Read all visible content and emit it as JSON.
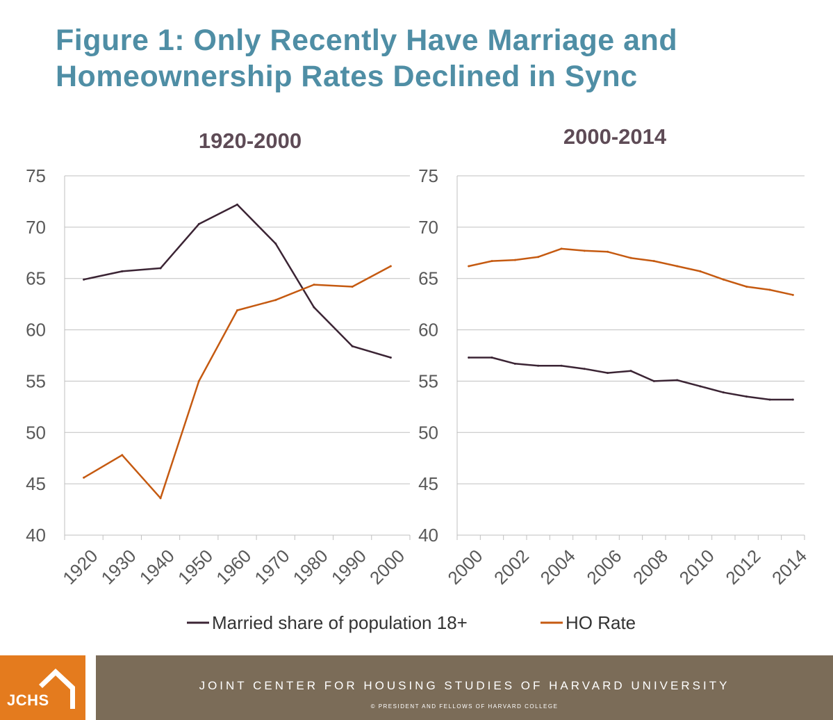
{
  "title": "Figure 1: Only Recently Have Marriage and Homeownership Rates Declined in Sync",
  "colors": {
    "title": "#4f8ea5",
    "married": "#3b2434",
    "ho": "#c55a11",
    "panel_title": "#5e4b56",
    "axis_text": "#595959",
    "grid": "#bfbfbf",
    "logo_bg": "#e47b1e",
    "footer_bg": "#7b6c58"
  },
  "legend": {
    "married_label": "Married share of population 18+",
    "ho_label": "HO Rate"
  },
  "chart_data": [
    {
      "type": "line",
      "title": "1920-2000",
      "xlabel": "",
      "ylabel": "",
      "ylim": [
        40,
        75
      ],
      "yticks": [
        40,
        45,
        50,
        55,
        60,
        65,
        70,
        75
      ],
      "categories": [
        "1920",
        "1930",
        "1940",
        "1950",
        "1960",
        "1970",
        "1980",
        "1990",
        "2000"
      ],
      "series": [
        {
          "name": "Married share of population 18+",
          "values": [
            64.9,
            65.7,
            66.0,
            70.3,
            72.2,
            68.4,
            62.2,
            58.4,
            57.3
          ]
        },
        {
          "name": "HO Rate",
          "values": [
            45.6,
            47.8,
            43.6,
            55.0,
            61.9,
            62.9,
            64.4,
            64.2,
            66.2
          ]
        }
      ]
    },
    {
      "type": "line",
      "title": "2000-2014",
      "xlabel": "",
      "ylabel": "",
      "ylim": [
        40,
        75
      ],
      "yticks": [
        40,
        45,
        50,
        55,
        60,
        65,
        70,
        75
      ],
      "categories": [
        "2000",
        "2001",
        "2002",
        "2003",
        "2004",
        "2005",
        "2006",
        "2007",
        "2008",
        "2009",
        "2010",
        "2011",
        "2012",
        "2013",
        "2014"
      ],
      "tick_labels": [
        "2000",
        "",
        "2002",
        "",
        "2004",
        "",
        "2006",
        "",
        "2008",
        "",
        "2010",
        "",
        "2012",
        "",
        "2014"
      ],
      "series": [
        {
          "name": "Married share of population 18+",
          "values": [
            57.3,
            57.3,
            56.7,
            56.5,
            56.5,
            56.2,
            55.8,
            56.0,
            55.0,
            55.1,
            54.5,
            53.9,
            53.5,
            53.2,
            53.2
          ]
        },
        {
          "name": "HO Rate",
          "values": [
            66.2,
            66.7,
            66.8,
            67.1,
            67.9,
            67.7,
            67.6,
            67.0,
            66.7,
            66.2,
            65.7,
            64.9,
            64.2,
            63.9,
            63.4
          ]
        }
      ]
    }
  ],
  "footer": {
    "logo_text": "JCHS",
    "org": "JOINT CENTER FOR HOUSING STUDIES OF HARVARD UNIVERSITY",
    "copyright": "© PRESIDENT AND FELLOWS OF HARVARD COLLEGE"
  }
}
